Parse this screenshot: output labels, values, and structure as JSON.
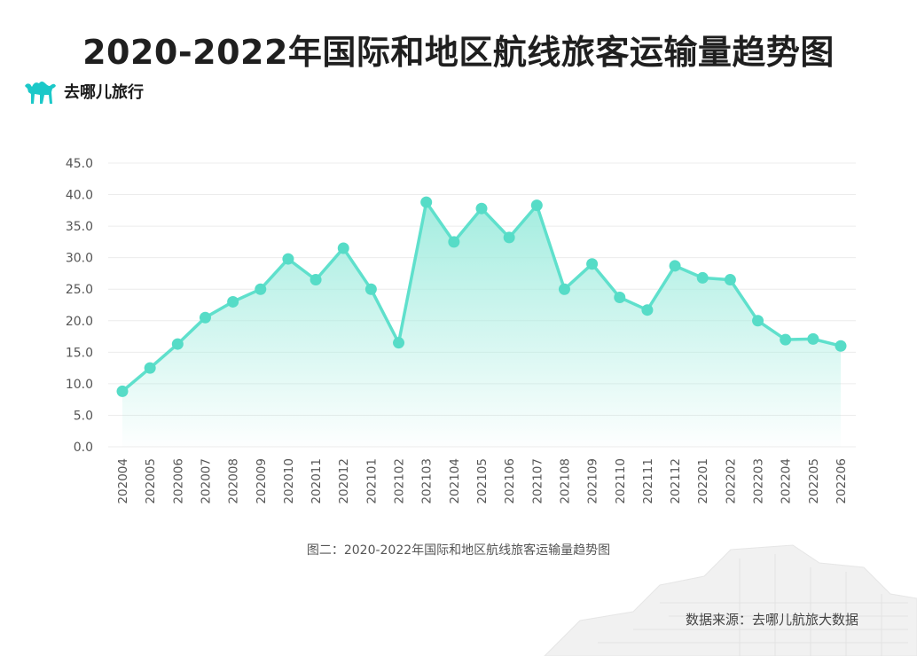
{
  "header": {
    "title": "2020-2022年国际和地区航线旅客运输量趋势图"
  },
  "brand": {
    "name": "去哪儿旅行",
    "icon": "camel-icon",
    "color": "#1bc8c8"
  },
  "caption": "图二：2020-2022年国际和地区航线旅客运输量趋势图",
  "source": "数据来源：去哪儿航旅大数据",
  "colors": {
    "line": "#5fe0cc",
    "point": "#56dcc7",
    "area_top": "#9fecde",
    "grid": "#ececec",
    "axis_text": "#555555"
  },
  "chart_data": {
    "type": "area",
    "title": "",
    "xlabel": "",
    "ylabel": "",
    "categories": [
      "202004",
      "202005",
      "202006",
      "202007",
      "202008",
      "202009",
      "202010",
      "202011",
      "202012",
      "202101",
      "202102",
      "202103",
      "202104",
      "202105",
      "202106",
      "202107",
      "202108",
      "202109",
      "202110",
      "202111",
      "202112",
      "202201",
      "202202",
      "202203",
      "202204",
      "202205",
      "202206"
    ],
    "series": [
      {
        "values": [
          8.8,
          12.5,
          16.3,
          20.5,
          23.0,
          25.0,
          29.8,
          26.5,
          31.5,
          25.0,
          16.5,
          38.8,
          32.5,
          37.8,
          33.2,
          38.3,
          25.0,
          29.0,
          23.7,
          21.7,
          28.7,
          26.8,
          26.5,
          20.0,
          17.0,
          17.1,
          16.0
        ]
      }
    ],
    "yticks": [
      "0.0",
      "5.0",
      "10.0",
      "15.0",
      "20.0",
      "25.0",
      "30.0",
      "35.0",
      "40.0",
      "45.0"
    ],
    "ylim": [
      0,
      45
    ],
    "grid": true,
    "legend": "none"
  }
}
